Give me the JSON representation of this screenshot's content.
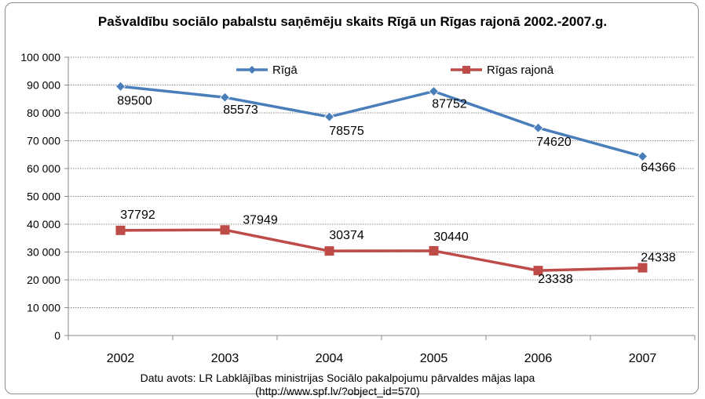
{
  "chart_data": {
    "type": "line",
    "title": "Pašvaldību sociālo pabalstu saņēmēju skaits Rīgā un Rīgas rajonā 2002.-2007.g.",
    "categories": [
      "2002",
      "2003",
      "2004",
      "2005",
      "2006",
      "2007"
    ],
    "series": [
      {
        "name": "Rīgā",
        "values": [
          89500,
          85573,
          78575,
          87752,
          74620,
          64366
        ],
        "color": "#4a7ebb",
        "marker": "diamond"
      },
      {
        "name": "Rīgas rajonā",
        "values": [
          37792,
          37949,
          30374,
          30440,
          23338,
          24338
        ],
        "color": "#be4b48",
        "marker": "square"
      }
    ],
    "ylim": [
      0,
      100000
    ],
    "yticks": [
      "0",
      "10 000",
      "20 000",
      "30 000",
      "40 000",
      "50 000",
      "60 000",
      "70 000",
      "80 000",
      "90 000",
      "100 000"
    ],
    "grid": true,
    "legend_position": "top",
    "source_lines": [
      "Datu avots: LR Labklājības ministrijas Sociālo pakalpojumu pārvaldes mājas lapa",
      "(http://www.spf.lv/?object_id=570)"
    ]
  }
}
